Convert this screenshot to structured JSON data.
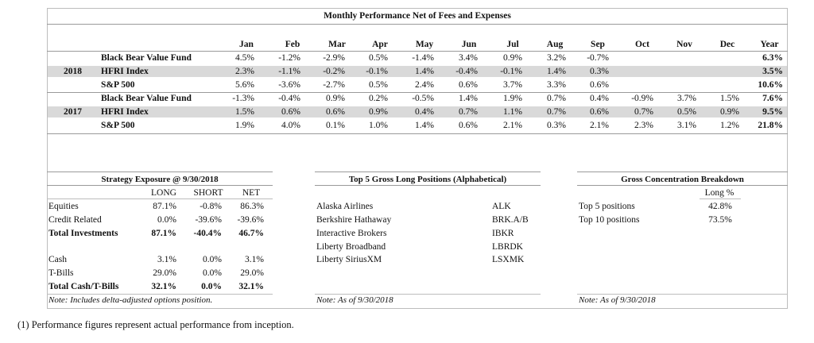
{
  "performance": {
    "title": "Monthly Performance Net of Fees and Expenses",
    "months": [
      "Jan",
      "Feb",
      "Mar",
      "Apr",
      "May",
      "Jun",
      "Jul",
      "Aug",
      "Sep",
      "Oct",
      "Nov",
      "Dec",
      "Year"
    ],
    "groups": [
      {
        "year": "2018",
        "rows": [
          {
            "name": "Black Bear Value Fund",
            "values": [
              "4.5%",
              "-1.2%",
              "-2.9%",
              "0.5%",
              "-1.4%",
              "3.4%",
              "0.9%",
              "3.2%",
              "-0.7%",
              "",
              "",
              "",
              "6.3%"
            ]
          },
          {
            "name": "HFRI Index",
            "values": [
              "2.3%",
              "-1.1%",
              "-0.2%",
              "-0.1%",
              "1.4%",
              "-0.4%",
              "-0.1%",
              "1.4%",
              "0.3%",
              "",
              "",
              "",
              "3.5%"
            ]
          },
          {
            "name": "S&P 500",
            "values": [
              "5.6%",
              "-3.6%",
              "-2.7%",
              "0.5%",
              "2.4%",
              "0.6%",
              "3.7%",
              "3.3%",
              "0.6%",
              "",
              "",
              "",
              "10.6%"
            ]
          }
        ]
      },
      {
        "year": "2017",
        "rows": [
          {
            "name": "Black Bear Value Fund",
            "values": [
              "-1.3%",
              "-0.4%",
              "0.9%",
              "0.2%",
              "-0.5%",
              "1.4%",
              "1.9%",
              "0.7%",
              "0.4%",
              "-0.9%",
              "3.7%",
              "1.5%",
              "7.6%"
            ]
          },
          {
            "name": "HFRI Index",
            "values": [
              "1.5%",
              "0.6%",
              "0.6%",
              "0.9%",
              "0.4%",
              "0.7%",
              "1.1%",
              "0.7%",
              "0.6%",
              "0.7%",
              "0.5%",
              "0.9%",
              "9.5%"
            ]
          },
          {
            "name": "S&P 500",
            "values": [
              "1.9%",
              "4.0%",
              "0.1%",
              "1.0%",
              "1.4%",
              "0.6%",
              "2.1%",
              "0.3%",
              "2.1%",
              "2.3%",
              "3.1%",
              "1.2%",
              "21.8%"
            ]
          }
        ]
      }
    ]
  },
  "exposure": {
    "title": "Strategy Exposure @ 9/30/2018",
    "columns": [
      "LONG",
      "SHORT",
      "NET"
    ],
    "rows": [
      {
        "label": "Equities",
        "values": [
          "87.1%",
          "-0.8%",
          "86.3%"
        ],
        "bold": false
      },
      {
        "label": "Credit Related",
        "values": [
          "0.0%",
          "-39.6%",
          "-39.6%"
        ],
        "bold": false
      },
      {
        "label": "Total Investments",
        "values": [
          "87.1%",
          "-40.4%",
          "46.7%"
        ],
        "bold": true
      },
      {
        "label": "Cash",
        "values": [
          "3.1%",
          "0.0%",
          "3.1%"
        ],
        "bold": false
      },
      {
        "label": "T-Bills",
        "values": [
          "29.0%",
          "0.0%",
          "29.0%"
        ],
        "bold": false
      },
      {
        "label": "Total Cash/T-Bills",
        "values": [
          "32.1%",
          "0.0%",
          "32.1%"
        ],
        "bold": true
      }
    ],
    "note": "Note: Includes delta-adjusted options position."
  },
  "top5": {
    "title": "Top 5 Gross Long Positions (Alphabetical)",
    "rows": [
      {
        "name": "Alaska Airlines",
        "ticker": "ALK"
      },
      {
        "name": "Berkshire Hathaway",
        "ticker": "BRK.A/B"
      },
      {
        "name": "Interactive Brokers",
        "ticker": "IBKR"
      },
      {
        "name": "Liberty Broadband",
        "ticker": "LBRDK"
      },
      {
        "name": "Liberty SiriusXM",
        "ticker": "LSXMK"
      }
    ],
    "note": "Note: As of 9/30/2018"
  },
  "concentration": {
    "title": "Gross Concentration Breakdown",
    "column": "Long %",
    "rows": [
      {
        "label": "Top 5 positions",
        "value": "42.8%"
      },
      {
        "label": "Top 10 positions",
        "value": "73.5%"
      }
    ],
    "note": "Note: As of 9/30/2018"
  },
  "footnote": "(1)   Performance figures represent actual performance from inception."
}
